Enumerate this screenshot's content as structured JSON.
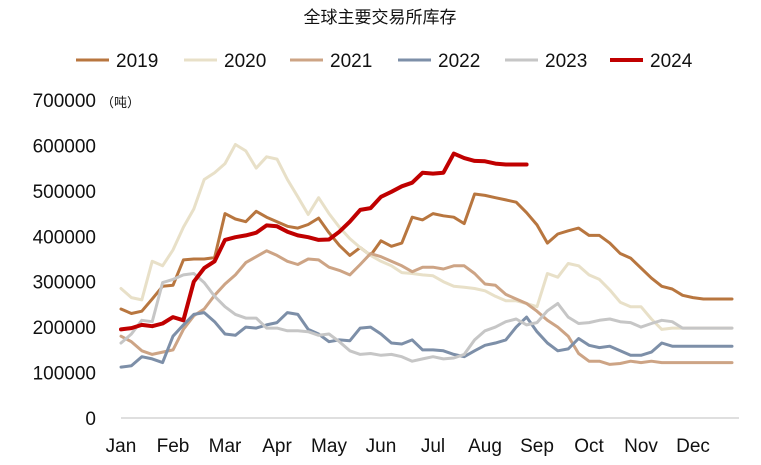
{
  "chart_data": {
    "type": "line",
    "title": "全球主要交易所库存",
    "unit_label": "（吨）",
    "y_ticks": [
      "700000",
      "600000",
      "500000",
      "400000",
      "300000",
      "200000",
      "100000",
      "0"
    ],
    "ylim": [
      0,
      700000
    ],
    "x_ticks": [
      "Jan",
      "Feb",
      "Mar",
      "Apr",
      "May",
      "Jun",
      "Jul",
      "Aug",
      "Sep",
      "Oct",
      "Nov",
      "Dec"
    ],
    "xlim": [
      1,
      12.75
    ],
    "grid": false,
    "legend_position": "top",
    "series": [
      {
        "name": "2019",
        "color": "#b8763f",
        "width": 3,
        "x": [
          1.0,
          1.2,
          1.4,
          1.6,
          1.8,
          2.0,
          2.2,
          2.4,
          2.6,
          2.8,
          3.0,
          3.2,
          3.4,
          3.6,
          3.8,
          4.0,
          4.2,
          4.4,
          4.6,
          4.8,
          5.0,
          5.2,
          5.4,
          5.6,
          5.8,
          6.0,
          6.2,
          6.4,
          6.6,
          6.8,
          7.0,
          7.2,
          7.4,
          7.6,
          7.8,
          8.0,
          8.2,
          8.4,
          8.6,
          8.8,
          9.0,
          9.2,
          9.4,
          9.6,
          9.8,
          10.0,
          10.2,
          10.4,
          10.6,
          10.8,
          11.0,
          11.2,
          11.4,
          11.6,
          11.8,
          12.0,
          12.2,
          12.4,
          12.6,
          12.75
        ],
        "y": [
          240000,
          230000,
          235000,
          262000,
          290000,
          292000,
          348000,
          350000,
          350000,
          353000,
          450000,
          438000,
          432000,
          455000,
          442000,
          432000,
          422000,
          418000,
          426000,
          440000,
          408000,
          380000,
          358000,
          375000,
          358000,
          390000,
          378000,
          385000,
          442000,
          436000,
          450000,
          445000,
          442000,
          428000,
          493000,
          490000,
          485000,
          480000,
          475000,
          452000,
          425000,
          385000,
          405000,
          412000,
          418000,
          402000,
          402000,
          385000,
          362000,
          352000,
          330000,
          308000,
          290000,
          284000,
          270000,
          265000,
          262000,
          262000,
          262000,
          262000
        ]
      },
      {
        "name": "2020",
        "color": "#e8e0c8",
        "width": 3,
        "x": [
          1.0,
          1.2,
          1.4,
          1.6,
          1.8,
          2.0,
          2.2,
          2.4,
          2.6,
          2.8,
          3.0,
          3.2,
          3.4,
          3.6,
          3.8,
          4.0,
          4.2,
          4.4,
          4.6,
          4.8,
          5.0,
          5.2,
          5.4,
          5.6,
          5.8,
          6.0,
          6.2,
          6.4,
          6.6,
          6.8,
          7.0,
          7.2,
          7.4,
          7.6,
          7.8,
          8.0,
          8.2,
          8.4,
          8.6,
          8.8,
          9.0,
          9.2,
          9.4,
          9.6,
          9.8,
          10.0,
          10.2,
          10.4,
          10.6,
          10.8,
          11.0,
          11.2,
          11.4,
          11.6,
          11.8,
          12.0,
          12.2,
          12.4,
          12.6,
          12.75
        ],
        "y": [
          285000,
          265000,
          260000,
          345000,
          335000,
          370000,
          420000,
          460000,
          525000,
          540000,
          560000,
          602000,
          588000,
          550000,
          575000,
          570000,
          525000,
          487000,
          448000,
          485000,
          450000,
          420000,
          395000,
          375000,
          358000,
          345000,
          335000,
          320000,
          318000,
          315000,
          313000,
          300000,
          290000,
          288000,
          285000,
          280000,
          268000,
          258000,
          258000,
          252000,
          245000,
          318000,
          310000,
          340000,
          335000,
          315000,
          305000,
          282000,
          255000,
          245000,
          245000,
          218000,
          195000,
          198000,
          198000,
          198000,
          198000,
          198000,
          198000,
          198000
        ]
      },
      {
        "name": "2021",
        "color": "#cda485",
        "width": 3,
        "x": [
          1.0,
          1.2,
          1.4,
          1.6,
          1.8,
          2.0,
          2.2,
          2.4,
          2.6,
          2.8,
          3.0,
          3.2,
          3.4,
          3.6,
          3.8,
          4.0,
          4.2,
          4.4,
          4.6,
          4.8,
          5.0,
          5.2,
          5.4,
          5.6,
          5.8,
          6.0,
          6.2,
          6.4,
          6.6,
          6.8,
          7.0,
          7.2,
          7.4,
          7.6,
          7.8,
          8.0,
          8.2,
          8.4,
          8.6,
          8.8,
          9.0,
          9.2,
          9.4,
          9.6,
          9.8,
          10.0,
          10.2,
          10.4,
          10.6,
          10.8,
          11.0,
          11.2,
          11.4,
          11.6,
          11.8,
          12.0,
          12.2,
          12.4,
          12.6,
          12.75
        ],
        "y": [
          180000,
          168000,
          148000,
          140000,
          145000,
          150000,
          195000,
          225000,
          240000,
          270000,
          295000,
          315000,
          342000,
          355000,
          368000,
          358000,
          345000,
          338000,
          350000,
          348000,
          332000,
          325000,
          315000,
          338000,
          362000,
          355000,
          345000,
          335000,
          322000,
          332000,
          332000,
          328000,
          335000,
          335000,
          318000,
          295000,
          292000,
          272000,
          262000,
          252000,
          235000,
          215000,
          200000,
          180000,
          142000,
          125000,
          125000,
          118000,
          120000,
          125000,
          122000,
          125000,
          122000,
          122000,
          122000,
          122000,
          122000,
          122000,
          122000,
          122000
        ]
      },
      {
        "name": "2022",
        "color": "#7d8fa8",
        "width": 3,
        "x": [
          1.0,
          1.2,
          1.4,
          1.6,
          1.8,
          2.0,
          2.2,
          2.4,
          2.6,
          2.8,
          3.0,
          3.2,
          3.4,
          3.6,
          3.8,
          4.0,
          4.2,
          4.4,
          4.6,
          4.8,
          5.0,
          5.2,
          5.4,
          5.6,
          5.8,
          6.0,
          6.2,
          6.4,
          6.6,
          6.8,
          7.0,
          7.2,
          7.4,
          7.6,
          7.8,
          8.0,
          8.2,
          8.4,
          8.6,
          8.8,
          9.0,
          9.2,
          9.4,
          9.6,
          9.8,
          10.0,
          10.2,
          10.4,
          10.6,
          10.8,
          11.0,
          11.2,
          11.4,
          11.6,
          11.8,
          12.0,
          12.2,
          12.4,
          12.6,
          12.75
        ],
        "y": [
          112000,
          115000,
          135000,
          130000,
          122000,
          180000,
          205000,
          228000,
          232000,
          212000,
          185000,
          182000,
          200000,
          198000,
          205000,
          210000,
          232000,
          228000,
          195000,
          185000,
          168000,
          172000,
          170000,
          198000,
          200000,
          185000,
          165000,
          163000,
          172000,
          150000,
          150000,
          148000,
          140000,
          135000,
          148000,
          160000,
          165000,
          172000,
          200000,
          222000,
          190000,
          165000,
          148000,
          152000,
          175000,
          160000,
          155000,
          158000,
          148000,
          138000,
          138000,
          145000,
          165000,
          158000,
          158000,
          158000,
          158000,
          158000,
          158000,
          158000
        ]
      },
      {
        "name": "2023",
        "color": "#c6c6c6",
        "width": 3,
        "x": [
          1.0,
          1.2,
          1.4,
          1.6,
          1.8,
          2.0,
          2.2,
          2.4,
          2.6,
          2.8,
          3.0,
          3.2,
          3.4,
          3.6,
          3.8,
          4.0,
          4.2,
          4.4,
          4.6,
          4.8,
          5.0,
          5.2,
          5.4,
          5.6,
          5.8,
          6.0,
          6.2,
          6.4,
          6.6,
          6.8,
          7.0,
          7.2,
          7.4,
          7.6,
          7.8,
          8.0,
          8.2,
          8.4,
          8.6,
          8.8,
          9.0,
          9.2,
          9.4,
          9.6,
          9.8,
          10.0,
          10.2,
          10.4,
          10.6,
          10.8,
          11.0,
          11.2,
          11.4,
          11.6,
          11.8,
          12.0,
          12.2,
          12.4,
          12.6,
          12.75
        ],
        "y": [
          165000,
          185000,
          215000,
          212000,
          298000,
          305000,
          315000,
          318000,
          298000,
          268000,
          245000,
          228000,
          220000,
          220000,
          198000,
          198000,
          192000,
          192000,
          190000,
          182000,
          185000,
          168000,
          148000,
          140000,
          142000,
          138000,
          140000,
          135000,
          125000,
          130000,
          135000,
          130000,
          132000,
          140000,
          172000,
          192000,
          200000,
          212000,
          218000,
          205000,
          210000,
          236000,
          252000,
          222000,
          208000,
          210000,
          215000,
          218000,
          212000,
          210000,
          200000,
          208000,
          215000,
          212000,
          198000,
          198000,
          198000,
          198000,
          198000,
          198000
        ]
      },
      {
        "name": "2024",
        "color": "#c00000",
        "width": 4,
        "x": [
          1.0,
          1.2,
          1.4,
          1.6,
          1.8,
          2.0,
          2.2,
          2.4,
          2.6,
          2.8,
          3.0,
          3.2,
          3.4,
          3.6,
          3.8,
          4.0,
          4.2,
          4.4,
          4.6,
          4.8,
          5.0,
          5.2,
          5.4,
          5.6,
          5.8,
          6.0,
          6.2,
          6.4,
          6.6,
          6.8,
          7.0,
          7.2,
          7.4,
          7.6,
          7.8,
          8.0,
          8.2,
          8.4,
          8.6,
          8.8
        ],
        "y": [
          195000,
          198000,
          205000,
          202000,
          208000,
          222000,
          215000,
          300000,
          330000,
          345000,
          392000,
          398000,
          402000,
          408000,
          424000,
          422000,
          410000,
          402000,
          398000,
          392000,
          393000,
          410000,
          432000,
          458000,
          462000,
          487000,
          498000,
          510000,
          518000,
          540000,
          538000,
          540000,
          582000,
          572000,
          566000,
          565000,
          560000,
          558000,
          558000,
          558000
        ]
      }
    ]
  }
}
